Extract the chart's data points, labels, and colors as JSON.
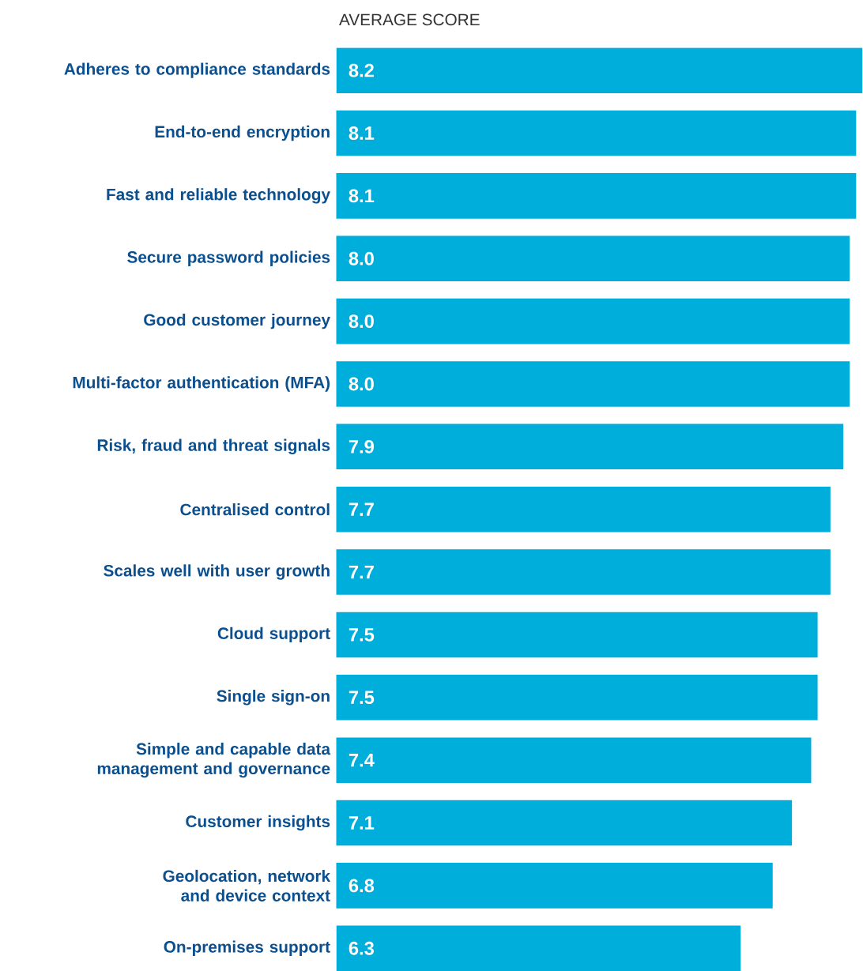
{
  "chart_data": {
    "type": "bar",
    "orientation": "horizontal",
    "title": "AVERAGE SCORE",
    "categories": [
      "Adheres to compliance standards",
      "End-to-end encryption",
      "Fast and reliable technology",
      "Secure password policies",
      "Good customer journey",
      "Multi-factor authentication (MFA)",
      "Risk, fraud and threat signals",
      "Centralised control",
      "Scales well with user growth",
      "Cloud support",
      "Single sign-on",
      "Simple and capable data management and governance",
      "Customer insights",
      "Geolocation, network and device context",
      "On-premises support"
    ],
    "values": [
      8.2,
      8.1,
      8.1,
      8.0,
      8.0,
      8.0,
      7.9,
      7.7,
      7.7,
      7.5,
      7.5,
      7.4,
      7.1,
      6.8,
      6.3
    ],
    "color": "#00aedb",
    "xlim": [
      0,
      8.2
    ],
    "tick_labels": "y",
    "value_labels": [
      "8.2",
      "8.1",
      "8.1",
      "8.0",
      "8.0",
      "8.0",
      "7.9",
      "7.7",
      "7.7",
      "7.5",
      "7.5",
      "7.4",
      "7.1",
      "6.8",
      "6.3"
    ]
  }
}
